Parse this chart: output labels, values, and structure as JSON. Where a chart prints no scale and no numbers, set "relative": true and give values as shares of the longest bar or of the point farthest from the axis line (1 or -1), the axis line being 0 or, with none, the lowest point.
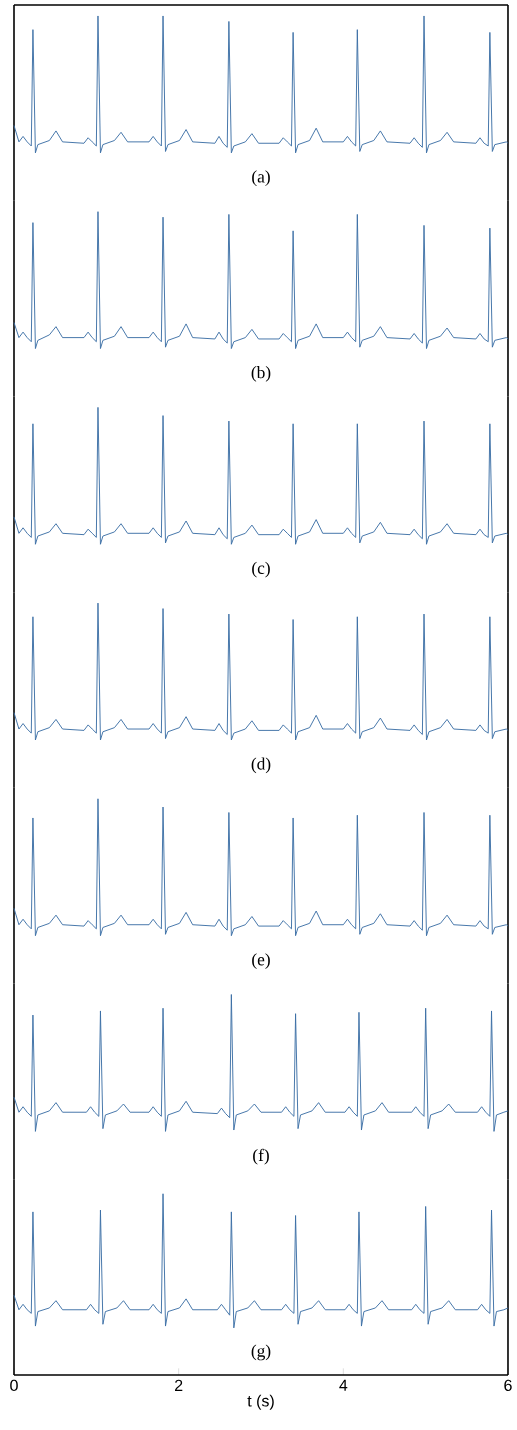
{
  "chart_data": [
    {
      "type": "line",
      "title": "(a)",
      "relative": true,
      "xlim": [
        0,
        6
      ],
      "tick_labels": false,
      "x": [
        0,
        0.06,
        0.11,
        0.16,
        0.21,
        0.23,
        0.26,
        0.29,
        0.43,
        0.51,
        0.59,
        0.85,
        0.9,
        0.95,
        1.0,
        1.02,
        1.05,
        1.08,
        1.22,
        1.3,
        1.38,
        1.64,
        1.69,
        1.74,
        1.79,
        1.81,
        1.84,
        1.87,
        2.01,
        2.09,
        2.17,
        2.44,
        2.49,
        2.54,
        2.59,
        2.61,
        2.64,
        2.67,
        2.81,
        2.89,
        2.97,
        3.22,
        3.27,
        3.32,
        3.37,
        3.39,
        3.42,
        3.45,
        3.59,
        3.67,
        3.75,
        4.0,
        4.05,
        4.1,
        4.15,
        4.17,
        4.2,
        4.23,
        4.37,
        4.45,
        4.53,
        4.81,
        4.86,
        4.91,
        4.96,
        4.98,
        5.01,
        5.04,
        5.18,
        5.26,
        5.34,
        5.61,
        5.66,
        5.71,
        5.76,
        5.78,
        5.81,
        5.84,
        5.98,
        6.0
      ],
      "series": [
        {
          "color": "#3a6ea5",
          "values": [
            0.2,
            0.08,
            0.12,
            0.08,
            0.05,
            0.9,
            0.0,
            0.06,
            0.09,
            0.16,
            0.08,
            0.07,
            0.11,
            0.08,
            0.05,
            1.0,
            0.0,
            0.06,
            0.09,
            0.15,
            0.08,
            0.08,
            0.12,
            0.08,
            0.05,
            1.0,
            0.01,
            0.06,
            0.09,
            0.17,
            0.08,
            0.07,
            0.12,
            0.07,
            0.04,
            0.96,
            0.0,
            0.05,
            0.08,
            0.14,
            0.07,
            0.07,
            0.11,
            0.08,
            0.05,
            0.88,
            0.0,
            0.06,
            0.09,
            0.18,
            0.08,
            0.08,
            0.12,
            0.08,
            0.05,
            0.9,
            0.01,
            0.06,
            0.09,
            0.16,
            0.08,
            0.07,
            0.11,
            0.07,
            0.04,
            1.0,
            0.0,
            0.06,
            0.09,
            0.15,
            0.08,
            0.07,
            0.11,
            0.07,
            0.05,
            0.88,
            0.01,
            0.06,
            0.08,
            0.07
          ]
        }
      ]
    },
    {
      "type": "line",
      "title": "(b)",
      "relative": true,
      "xlim": [
        0,
        6
      ],
      "tick_labels": false,
      "x": [
        0,
        0.06,
        0.11,
        0.16,
        0.21,
        0.23,
        0.26,
        0.29,
        0.43,
        0.51,
        0.59,
        0.85,
        0.9,
        0.95,
        1.0,
        1.02,
        1.05,
        1.08,
        1.22,
        1.3,
        1.38,
        1.64,
        1.69,
        1.74,
        1.79,
        1.81,
        1.84,
        1.87,
        2.01,
        2.09,
        2.17,
        2.44,
        2.49,
        2.54,
        2.59,
        2.61,
        2.64,
        2.67,
        2.81,
        2.89,
        2.97,
        3.22,
        3.27,
        3.32,
        3.37,
        3.39,
        3.42,
        3.45,
        3.59,
        3.67,
        3.75,
        4.0,
        4.05,
        4.1,
        4.15,
        4.17,
        4.2,
        4.23,
        4.37,
        4.45,
        4.53,
        4.81,
        4.86,
        4.91,
        4.96,
        4.98,
        5.01,
        5.04,
        5.18,
        5.26,
        5.34,
        5.61,
        5.66,
        5.71,
        5.76,
        5.78,
        5.81,
        5.84,
        5.98,
        6.0
      ],
      "series": [
        {
          "color": "#3a6ea5",
          "values": [
            0.19,
            0.08,
            0.12,
            0.08,
            0.05,
            0.92,
            0.0,
            0.06,
            0.1,
            0.16,
            0.08,
            0.08,
            0.12,
            0.08,
            0.05,
            1.0,
            0.0,
            0.06,
            0.09,
            0.16,
            0.08,
            0.08,
            0.12,
            0.08,
            0.05,
            0.96,
            0.01,
            0.06,
            0.09,
            0.18,
            0.08,
            0.07,
            0.12,
            0.07,
            0.04,
            0.98,
            0.0,
            0.05,
            0.08,
            0.14,
            0.07,
            0.07,
            0.11,
            0.08,
            0.05,
            0.86,
            0.0,
            0.06,
            0.09,
            0.18,
            0.08,
            0.08,
            0.12,
            0.08,
            0.05,
            0.98,
            0.01,
            0.06,
            0.09,
            0.16,
            0.08,
            0.07,
            0.11,
            0.07,
            0.04,
            0.9,
            0.0,
            0.06,
            0.09,
            0.15,
            0.08,
            0.07,
            0.11,
            0.07,
            0.05,
            0.88,
            0.01,
            0.06,
            0.08,
            0.07
          ]
        }
      ]
    },
    {
      "type": "line",
      "title": "(c)",
      "relative": true,
      "xlim": [
        0,
        6
      ],
      "tick_labels": false,
      "x": [
        0,
        0.06,
        0.11,
        0.16,
        0.21,
        0.23,
        0.26,
        0.29,
        0.43,
        0.51,
        0.59,
        0.85,
        0.9,
        0.95,
        1.0,
        1.02,
        1.05,
        1.08,
        1.22,
        1.3,
        1.38,
        1.64,
        1.69,
        1.74,
        1.79,
        1.81,
        1.84,
        1.87,
        2.01,
        2.09,
        2.17,
        2.44,
        2.49,
        2.54,
        2.59,
        2.61,
        2.64,
        2.67,
        2.81,
        2.89,
        2.97,
        3.22,
        3.27,
        3.32,
        3.37,
        3.39,
        3.42,
        3.45,
        3.59,
        3.67,
        3.75,
        4.0,
        4.05,
        4.1,
        4.15,
        4.17,
        4.2,
        4.23,
        4.37,
        4.45,
        4.53,
        4.81,
        4.86,
        4.91,
        4.96,
        4.98,
        5.01,
        5.04,
        5.18,
        5.26,
        5.34,
        5.61,
        5.66,
        5.71,
        5.76,
        5.78,
        5.81,
        5.84,
        5.98,
        6.0
      ],
      "series": [
        {
          "color": "#3a6ea5",
          "values": [
            0.2,
            0.08,
            0.12,
            0.08,
            0.05,
            0.88,
            0.0,
            0.06,
            0.09,
            0.15,
            0.08,
            0.07,
            0.11,
            0.08,
            0.05,
            1.0,
            0.0,
            0.06,
            0.09,
            0.15,
            0.08,
            0.08,
            0.12,
            0.08,
            0.05,
            0.94,
            0.01,
            0.06,
            0.09,
            0.17,
            0.08,
            0.07,
            0.12,
            0.07,
            0.04,
            0.9,
            0.0,
            0.05,
            0.08,
            0.14,
            0.07,
            0.07,
            0.11,
            0.08,
            0.05,
            0.88,
            0.0,
            0.06,
            0.09,
            0.18,
            0.08,
            0.08,
            0.12,
            0.08,
            0.05,
            0.88,
            0.01,
            0.06,
            0.09,
            0.16,
            0.08,
            0.07,
            0.11,
            0.07,
            0.04,
            0.9,
            0.0,
            0.06,
            0.09,
            0.15,
            0.08,
            0.07,
            0.11,
            0.07,
            0.05,
            0.88,
            0.01,
            0.06,
            0.08,
            0.07
          ]
        }
      ]
    },
    {
      "type": "line",
      "title": "(d)",
      "relative": true,
      "xlim": [
        0,
        6
      ],
      "tick_labels": false,
      "x": [
        0,
        0.06,
        0.11,
        0.16,
        0.21,
        0.23,
        0.26,
        0.29,
        0.43,
        0.51,
        0.59,
        0.85,
        0.9,
        0.95,
        1.0,
        1.02,
        1.05,
        1.08,
        1.22,
        1.3,
        1.38,
        1.64,
        1.69,
        1.74,
        1.79,
        1.81,
        1.84,
        1.87,
        2.01,
        2.09,
        2.17,
        2.44,
        2.49,
        2.54,
        2.59,
        2.61,
        2.64,
        2.67,
        2.81,
        2.89,
        2.97,
        3.22,
        3.27,
        3.32,
        3.37,
        3.39,
        3.42,
        3.45,
        3.59,
        3.67,
        3.75,
        4.0,
        4.05,
        4.1,
        4.15,
        4.17,
        4.2,
        4.23,
        4.37,
        4.45,
        4.53,
        4.81,
        4.86,
        4.91,
        4.96,
        4.98,
        5.01,
        5.04,
        5.18,
        5.26,
        5.34,
        5.61,
        5.66,
        5.71,
        5.76,
        5.78,
        5.81,
        5.84,
        5.98,
        6.0
      ],
      "series": [
        {
          "color": "#3a6ea5",
          "values": [
            0.2,
            0.08,
            0.12,
            0.08,
            0.05,
            0.9,
            0.0,
            0.06,
            0.09,
            0.15,
            0.08,
            0.07,
            0.11,
            0.08,
            0.05,
            1.0,
            0.0,
            0.06,
            0.09,
            0.15,
            0.08,
            0.08,
            0.12,
            0.08,
            0.05,
            0.96,
            0.01,
            0.06,
            0.09,
            0.17,
            0.08,
            0.07,
            0.12,
            0.07,
            0.04,
            0.92,
            0.0,
            0.05,
            0.08,
            0.14,
            0.07,
            0.07,
            0.11,
            0.08,
            0.05,
            0.88,
            0.0,
            0.06,
            0.09,
            0.18,
            0.08,
            0.08,
            0.12,
            0.08,
            0.05,
            0.9,
            0.01,
            0.06,
            0.09,
            0.16,
            0.08,
            0.07,
            0.11,
            0.07,
            0.04,
            0.92,
            0.0,
            0.06,
            0.09,
            0.15,
            0.08,
            0.07,
            0.11,
            0.07,
            0.05,
            0.9,
            0.01,
            0.06,
            0.08,
            0.07
          ]
        }
      ]
    },
    {
      "type": "line",
      "title": "(e)",
      "relative": true,
      "xlim": [
        0,
        6
      ],
      "tick_labels": false,
      "x": [
        0,
        0.06,
        0.11,
        0.16,
        0.21,
        0.23,
        0.26,
        0.29,
        0.43,
        0.51,
        0.59,
        0.85,
        0.9,
        0.95,
        1.0,
        1.02,
        1.05,
        1.08,
        1.22,
        1.3,
        1.38,
        1.64,
        1.69,
        1.74,
        1.79,
        1.81,
        1.84,
        1.87,
        2.01,
        2.09,
        2.17,
        2.44,
        2.49,
        2.54,
        2.59,
        2.61,
        2.64,
        2.67,
        2.81,
        2.89,
        2.97,
        3.22,
        3.27,
        3.32,
        3.37,
        3.39,
        3.42,
        3.45,
        3.59,
        3.67,
        3.75,
        4.0,
        4.05,
        4.1,
        4.15,
        4.17,
        4.2,
        4.23,
        4.37,
        4.45,
        4.53,
        4.81,
        4.86,
        4.91,
        4.96,
        4.98,
        5.01,
        5.04,
        5.18,
        5.26,
        5.34,
        5.61,
        5.66,
        5.71,
        5.76,
        5.78,
        5.81,
        5.84,
        5.98,
        6.0
      ],
      "series": [
        {
          "color": "#3a6ea5",
          "values": [
            0.2,
            0.08,
            0.12,
            0.08,
            0.05,
            0.86,
            0.0,
            0.06,
            0.09,
            0.15,
            0.08,
            0.07,
            0.11,
            0.08,
            0.05,
            1.0,
            0.0,
            0.06,
            0.09,
            0.15,
            0.08,
            0.08,
            0.12,
            0.08,
            0.05,
            0.94,
            0.01,
            0.06,
            0.09,
            0.17,
            0.08,
            0.07,
            0.12,
            0.07,
            0.04,
            0.9,
            0.0,
            0.05,
            0.08,
            0.14,
            0.07,
            0.07,
            0.11,
            0.08,
            0.05,
            0.86,
            0.0,
            0.06,
            0.09,
            0.18,
            0.08,
            0.08,
            0.12,
            0.08,
            0.05,
            0.88,
            0.01,
            0.06,
            0.09,
            0.16,
            0.08,
            0.07,
            0.11,
            0.07,
            0.04,
            0.9,
            0.0,
            0.06,
            0.09,
            0.15,
            0.08,
            0.07,
            0.11,
            0.07,
            0.05,
            0.88,
            0.01,
            0.06,
            0.08,
            0.07
          ]
        }
      ]
    },
    {
      "type": "line",
      "title": "(f)",
      "relative": true,
      "xlim": [
        0,
        6
      ],
      "tick_labels": false,
      "x": [
        0,
        0.06,
        0.11,
        0.16,
        0.21,
        0.23,
        0.26,
        0.29,
        0.43,
        0.51,
        0.59,
        0.88,
        0.93,
        0.98,
        1.03,
        1.05,
        1.08,
        1.11,
        1.25,
        1.33,
        1.41,
        1.64,
        1.69,
        1.74,
        1.79,
        1.81,
        1.84,
        1.87,
        2.01,
        2.09,
        2.17,
        2.47,
        2.52,
        2.57,
        2.62,
        2.64,
        2.67,
        2.7,
        2.84,
        2.92,
        3.0,
        3.25,
        3.3,
        3.35,
        3.4,
        3.42,
        3.45,
        3.48,
        3.62,
        3.7,
        3.78,
        4.02,
        4.07,
        4.12,
        4.17,
        4.19,
        4.22,
        4.25,
        4.39,
        4.47,
        4.55,
        4.83,
        4.88,
        4.93,
        4.98,
        5.0,
        5.03,
        5.06,
        5.2,
        5.28,
        5.36,
        5.63,
        5.68,
        5.73,
        5.78,
        5.8,
        5.83,
        5.86,
        5.95,
        6.0
      ],
      "series": [
        {
          "color": "#3a6ea5",
          "values": [
            0.25,
            0.14,
            0.18,
            0.14,
            0.11,
            0.85,
            0.0,
            0.12,
            0.15,
            0.21,
            0.14,
            0.14,
            0.18,
            0.14,
            0.11,
            0.88,
            0.02,
            0.12,
            0.15,
            0.2,
            0.14,
            0.14,
            0.18,
            0.14,
            0.11,
            0.9,
            0.0,
            0.12,
            0.15,
            0.22,
            0.14,
            0.13,
            0.17,
            0.13,
            0.1,
            1.0,
            0.01,
            0.12,
            0.15,
            0.2,
            0.14,
            0.14,
            0.18,
            0.14,
            0.11,
            0.86,
            0.02,
            0.12,
            0.15,
            0.21,
            0.14,
            0.14,
            0.18,
            0.14,
            0.11,
            0.87,
            0.01,
            0.12,
            0.15,
            0.21,
            0.14,
            0.14,
            0.18,
            0.14,
            0.11,
            0.9,
            0.02,
            0.12,
            0.15,
            0.2,
            0.14,
            0.14,
            0.18,
            0.14,
            0.11,
            0.88,
            0.0,
            0.12,
            0.14,
            0.15
          ]
        }
      ]
    },
    {
      "type": "line",
      "title": "(g)",
      "xlabel": "t (s)",
      "relative": true,
      "xlim": [
        0,
        6
      ],
      "xticks": [
        0,
        2,
        4,
        6
      ],
      "tick_labels": "x",
      "x": [
        0,
        0.06,
        0.11,
        0.16,
        0.21,
        0.23,
        0.26,
        0.29,
        0.43,
        0.51,
        0.59,
        0.88,
        0.93,
        0.98,
        1.03,
        1.05,
        1.08,
        1.11,
        1.25,
        1.33,
        1.41,
        1.64,
        1.69,
        1.74,
        1.79,
        1.81,
        1.84,
        1.87,
        2.01,
        2.09,
        2.17,
        2.47,
        2.52,
        2.57,
        2.62,
        2.64,
        2.67,
        2.7,
        2.84,
        2.92,
        3.0,
        3.25,
        3.3,
        3.35,
        3.4,
        3.42,
        3.45,
        3.48,
        3.62,
        3.7,
        3.78,
        4.02,
        4.07,
        4.12,
        4.17,
        4.19,
        4.22,
        4.25,
        4.39,
        4.47,
        4.55,
        4.83,
        4.88,
        4.93,
        4.98,
        5.0,
        5.03,
        5.06,
        5.2,
        5.28,
        5.36,
        5.63,
        5.68,
        5.73,
        5.78,
        5.8,
        5.83,
        5.86,
        5.95,
        6.0
      ],
      "series": [
        {
          "color": "#3a6ea5",
          "values": [
            0.44,
            0.36,
            0.39,
            0.36,
            0.34,
            0.9,
            0.27,
            0.35,
            0.37,
            0.41,
            0.36,
            0.36,
            0.39,
            0.36,
            0.34,
            0.91,
            0.28,
            0.35,
            0.37,
            0.41,
            0.36,
            0.36,
            0.39,
            0.36,
            0.34,
            1.0,
            0.27,
            0.35,
            0.37,
            0.42,
            0.36,
            0.36,
            0.39,
            0.36,
            0.33,
            0.9,
            0.26,
            0.35,
            0.37,
            0.41,
            0.36,
            0.36,
            0.39,
            0.36,
            0.34,
            0.88,
            0.28,
            0.35,
            0.37,
            0.41,
            0.36,
            0.36,
            0.39,
            0.36,
            0.34,
            0.9,
            0.27,
            0.35,
            0.37,
            0.41,
            0.36,
            0.36,
            0.39,
            0.36,
            0.34,
            0.93,
            0.28,
            0.35,
            0.37,
            0.41,
            0.36,
            0.36,
            0.39,
            0.36,
            0.34,
            0.91,
            0.27,
            0.35,
            0.36,
            0.37
          ]
        }
      ]
    }
  ]
}
